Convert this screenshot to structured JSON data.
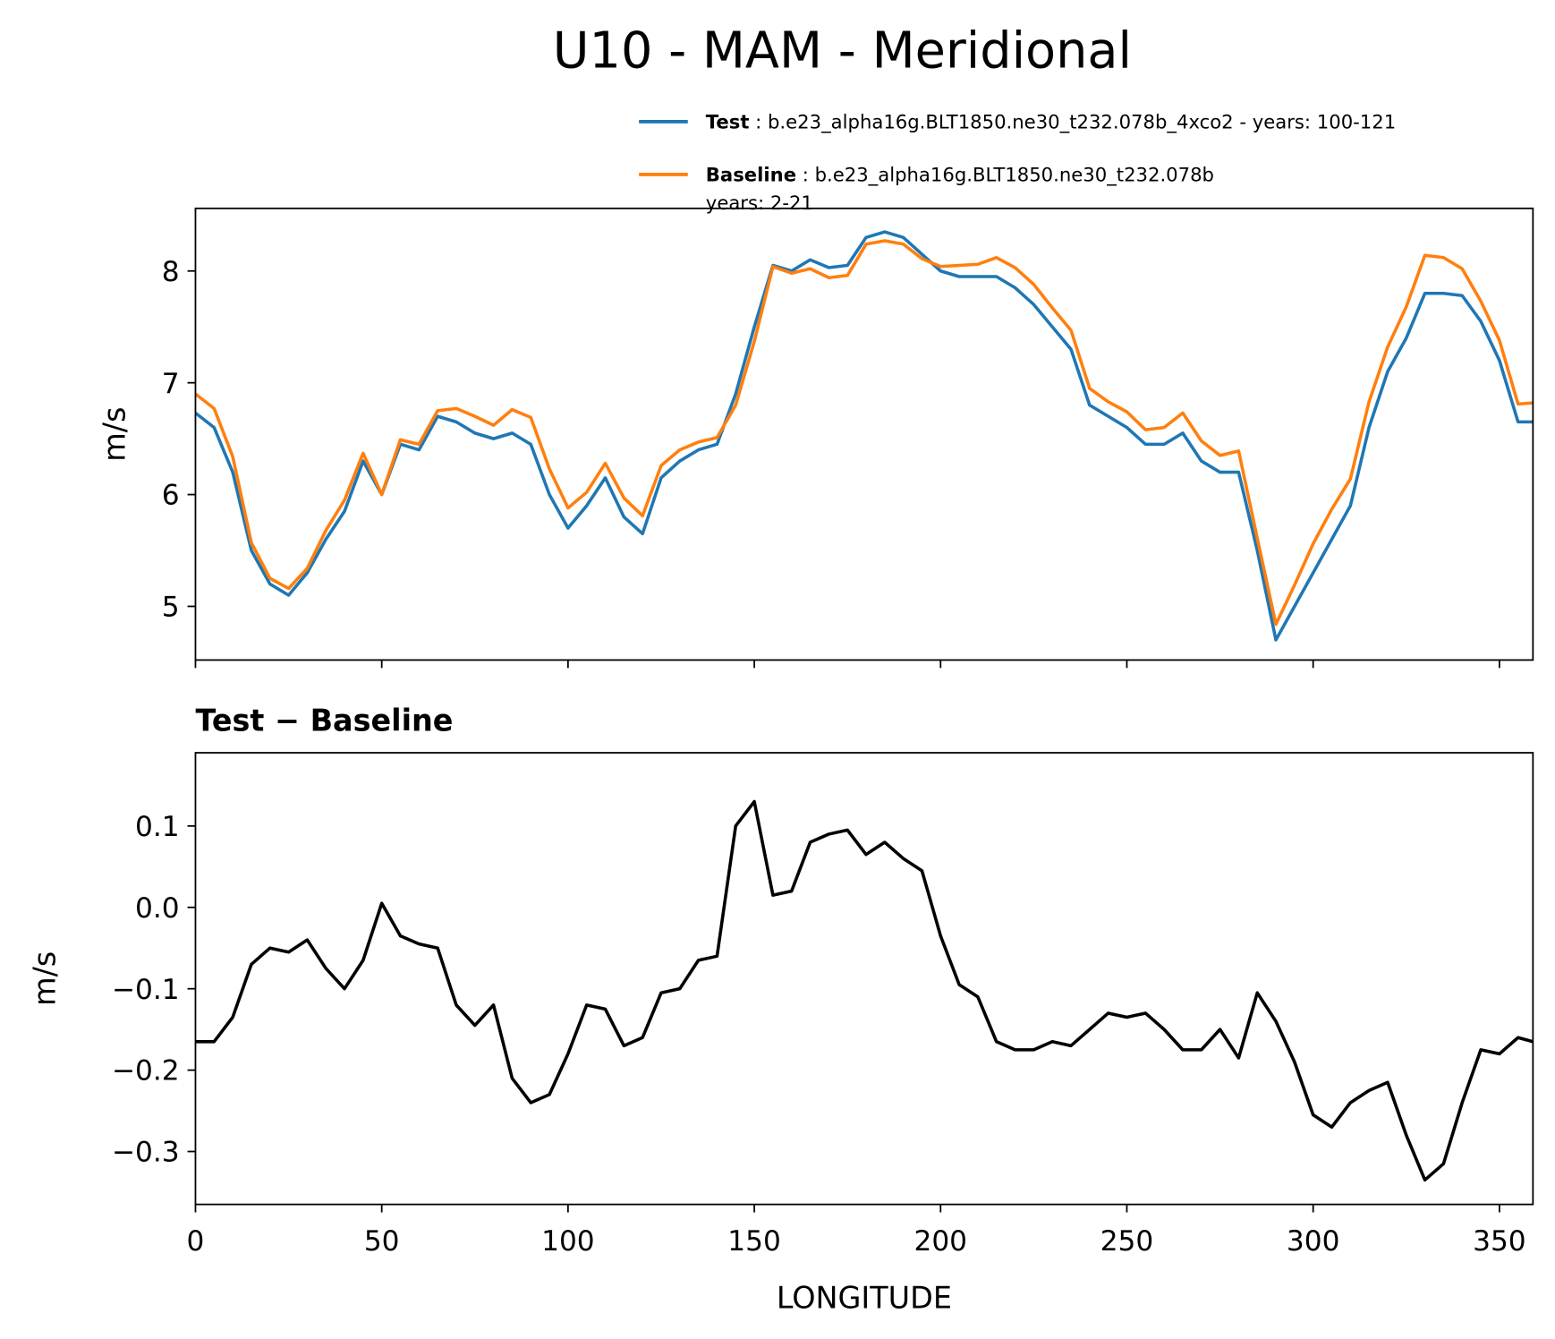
{
  "title": "U10 - MAM - Meridional",
  "chart_data": [
    {
      "type": "line",
      "ylabel": "m/s",
      "x": [
        0,
        5,
        10,
        15,
        20,
        25,
        30,
        35,
        40,
        45,
        50,
        55,
        60,
        65,
        70,
        75,
        80,
        85,
        90,
        95,
        100,
        105,
        110,
        115,
        120,
        125,
        130,
        135,
        140,
        145,
        150,
        155,
        160,
        165,
        170,
        175,
        180,
        185,
        190,
        195,
        200,
        205,
        210,
        215,
        220,
        225,
        230,
        235,
        240,
        245,
        250,
        255,
        260,
        265,
        270,
        275,
        280,
        285,
        290,
        295,
        300,
        305,
        310,
        315,
        320,
        325,
        330,
        335,
        340,
        345,
        350,
        355,
        359
      ],
      "series": [
        {
          "name": "Test",
          "description": [
            ": b.e23_alpha16g.BLT1850.ne30_t232.078b_4xco2 - years: 100-121"
          ],
          "color": "#1f77b4",
          "values": [
            6.73,
            6.6,
            6.2,
            5.5,
            5.2,
            5.1,
            5.3,
            5.6,
            5.85,
            6.3,
            6.0,
            6.45,
            6.4,
            6.7,
            6.65,
            6.55,
            6.5,
            6.55,
            6.45,
            6.0,
            5.7,
            5.9,
            6.15,
            5.8,
            5.65,
            6.15,
            6.3,
            6.4,
            6.45,
            6.9,
            7.5,
            8.05,
            8.0,
            8.1,
            8.03,
            8.05,
            8.3,
            8.35,
            8.3,
            8.15,
            8.0,
            7.95,
            7.95,
            7.95,
            7.85,
            7.7,
            7.5,
            7.3,
            6.8,
            6.7,
            6.6,
            6.45,
            6.45,
            6.55,
            6.3,
            6.2,
            6.2,
            5.5,
            4.7,
            5.0,
            5.3,
            5.6,
            5.9,
            6.6,
            7.1,
            7.4,
            7.8,
            7.8,
            7.78,
            7.55,
            7.2,
            6.65,
            6.65
          ]
        },
        {
          "name": "Baseline",
          "description": [
            ": b.e23_alpha16g.BLT1850.ne30_t232.078b",
            "years: 2-21"
          ],
          "color": "#ff7f0e",
          "values": [
            6.9,
            6.77,
            6.34,
            5.57,
            5.25,
            5.16,
            5.34,
            5.68,
            5.95,
            6.37,
            6.0,
            6.49,
            6.45,
            6.75,
            6.77,
            6.7,
            6.62,
            6.76,
            6.69,
            6.23,
            5.88,
            6.02,
            6.28,
            5.97,
            5.81,
            6.26,
            6.4,
            6.47,
            6.51,
            6.8,
            7.37,
            8.04,
            7.98,
            8.02,
            7.94,
            7.96,
            8.24,
            8.27,
            8.24,
            8.11,
            8.04,
            8.05,
            8.06,
            8.12,
            8.03,
            7.88,
            7.67,
            7.47,
            6.95,
            6.83,
            6.74,
            6.58,
            6.6,
            6.73,
            6.48,
            6.35,
            6.39,
            5.61,
            4.84,
            5.19,
            5.56,
            5.87,
            6.14,
            6.83,
            7.32,
            7.68,
            8.14,
            8.12,
            8.02,
            7.73,
            7.38,
            6.81,
            6.82
          ]
        }
      ],
      "xlim": [
        0,
        359
      ],
      "xticks": [
        0,
        50,
        100,
        150,
        200,
        250,
        300,
        350
      ],
      "xtick_labels": false,
      "ylim": [
        4.52,
        8.56
      ],
      "yticks": [
        5,
        6,
        7,
        8
      ],
      "legend": "top"
    },
    {
      "type": "line",
      "title": "Test − Baseline",
      "xlabel": "LONGITUDE",
      "ylabel": "m/s",
      "x": [
        0,
        5,
        10,
        15,
        20,
        25,
        30,
        35,
        40,
        45,
        50,
        55,
        60,
        65,
        70,
        75,
        80,
        85,
        90,
        95,
        100,
        105,
        110,
        115,
        120,
        125,
        130,
        135,
        140,
        145,
        150,
        155,
        160,
        165,
        170,
        175,
        180,
        185,
        190,
        195,
        200,
        205,
        210,
        215,
        220,
        225,
        230,
        235,
        240,
        245,
        250,
        255,
        260,
        265,
        270,
        275,
        280,
        285,
        290,
        295,
        300,
        305,
        310,
        315,
        320,
        325,
        330,
        335,
        340,
        345,
        350,
        355,
        359
      ],
      "series": [
        {
          "color": "#000000",
          "values": [
            -0.165,
            -0.165,
            -0.135,
            -0.07,
            -0.05,
            -0.055,
            -0.04,
            -0.075,
            -0.1,
            -0.065,
            0.005,
            -0.035,
            -0.045,
            -0.05,
            -0.12,
            -0.145,
            -0.12,
            -0.21,
            -0.24,
            -0.23,
            -0.18,
            -0.12,
            -0.125,
            -0.17,
            -0.16,
            -0.105,
            -0.1,
            -0.065,
            -0.06,
            0.1,
            0.13,
            0.015,
            0.02,
            0.08,
            0.09,
            0.095,
            0.065,
            0.08,
            0.06,
            0.045,
            -0.035,
            -0.095,
            -0.11,
            -0.165,
            -0.175,
            -0.175,
            -0.165,
            -0.17,
            -0.15,
            -0.13,
            -0.135,
            -0.13,
            -0.15,
            -0.175,
            -0.175,
            -0.15,
            -0.185,
            -0.105,
            -0.14,
            -0.19,
            -0.255,
            -0.27,
            -0.24,
            -0.225,
            -0.215,
            -0.28,
            -0.335,
            -0.315,
            -0.24,
            -0.175,
            -0.18,
            -0.16,
            -0.165
          ]
        }
      ],
      "xlim": [
        0,
        359
      ],
      "xticks": [
        0,
        50,
        100,
        150,
        200,
        250,
        300,
        350
      ],
      "xtick_labels": true,
      "ylim": [
        -0.365,
        0.19
      ],
      "yticks": [
        {
          "value": -0.3,
          "label": "−0.3"
        },
        {
          "value": -0.2,
          "label": "−0.2"
        },
        {
          "value": -0.1,
          "label": "−0.1"
        },
        {
          "value": 0,
          "label": "0.0"
        },
        0.1
      ]
    }
  ]
}
